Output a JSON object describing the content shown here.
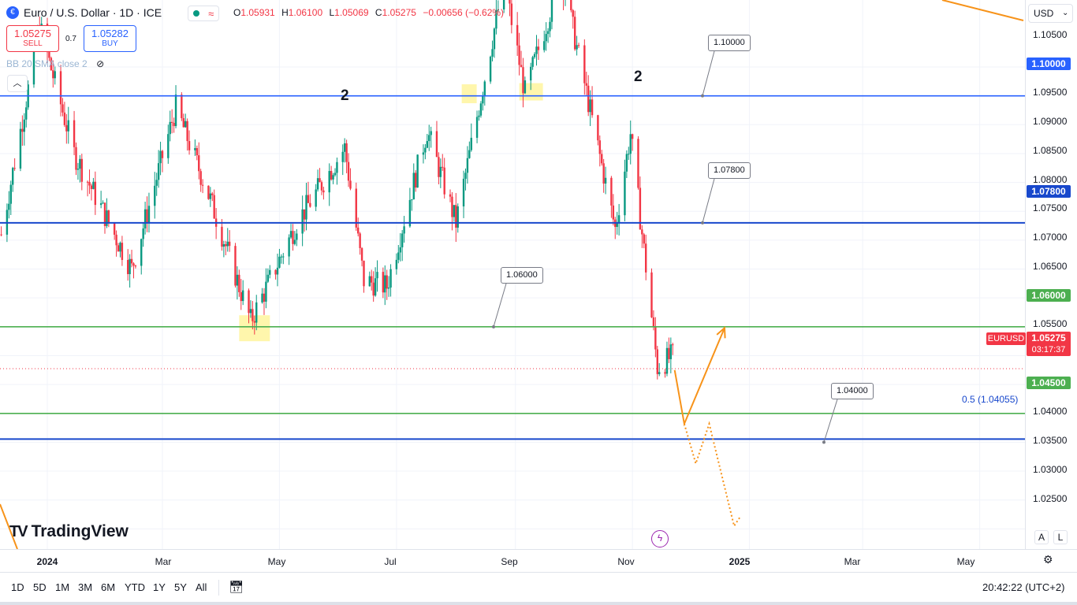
{
  "header": {
    "symbol_title": "Euro / U.S. Dollar · 1D · ICE",
    "symbol_icon": "euro-flag-icon",
    "status_wave": "≈",
    "ohlc": [
      {
        "key": "O",
        "value": "1.05931"
      },
      {
        "key": "H",
        "value": "1.06100"
      },
      {
        "key": "L",
        "value": "1.05069"
      },
      {
        "key": "C",
        "value": "1.05275"
      }
    ],
    "change": "−0.00656 (−0.62%)"
  },
  "trade": {
    "sell_price": "1.05275",
    "sell_label": "SELL",
    "spread": "0.7",
    "buy_price": "1.05282",
    "buy_label": "BUY"
  },
  "indicator": {
    "label": "BB 20 SMA close 2"
  },
  "currency": "USD",
  "colors": {
    "up": "#089981",
    "down": "#f23645",
    "level_blue": "#2962ff",
    "level_navy": "#1848cc",
    "level_green": "#4caf50",
    "forecast": "#f7931a",
    "highlight": "#fff59d"
  },
  "chart_data": {
    "type": "candlestick",
    "symbol": "EURUSD",
    "interval": "1D",
    "y_ticks": [
      "1.10500",
      "1.09500",
      "1.09000",
      "1.08500",
      "1.08000",
      "1.07500",
      "1.07000",
      "1.06500",
      "1.05500",
      "1.04000",
      "1.03500",
      "1.03000",
      "1.02500"
    ],
    "x_ticks": [
      "2024",
      "Mar",
      "May",
      "Jul",
      "Sep",
      "Nov",
      "2025",
      "Mar",
      "May"
    ],
    "ylim": [
      1.0215,
      1.1166
    ],
    "anchors": [
      [
        "2023-12-08",
        1.076
      ],
      [
        "2023-12-28",
        1.112
      ],
      [
        "2024-01-15",
        1.09
      ],
      [
        "2024-02-14",
        1.07
      ],
      [
        "2024-03-08",
        1.098
      ],
      [
        "2024-03-26",
        1.082
      ],
      [
        "2024-04-16",
        1.061
      ],
      [
        "2024-05-10",
        1.078
      ],
      [
        "2024-06-04",
        1.091
      ],
      [
        "2024-06-14",
        1.068
      ],
      [
        "2024-06-26",
        1.067
      ],
      [
        "2024-07-17",
        1.094
      ],
      [
        "2024-08-01",
        1.078
      ],
      [
        "2024-08-26",
        1.12
      ],
      [
        "2024-09-06",
        1.1005
      ],
      [
        "2024-09-25",
        1.121
      ],
      [
        "2024-10-23",
        1.077
      ],
      [
        "2024-10-31",
        1.0935
      ],
      [
        "2024-11-14",
        1.053
      ],
      [
        "2024-11-22",
        1.055
      ]
    ],
    "levels": [
      {
        "value": 1.1,
        "label": "1.10000",
        "color": "#2962ff"
      },
      {
        "value": 1.078,
        "label": "1.07800",
        "color": "#1848cc"
      },
      {
        "value": 1.06,
        "label": "1.06000",
        "color": "#4caf50"
      },
      {
        "value": 1.045,
        "label": "1.04500",
        "color": "#4caf50"
      },
      {
        "value": 1.04055,
        "label": "0.5 (1.04055)",
        "color": "#1848cc"
      }
    ],
    "level_callouts": [
      "1.10000",
      "1.07800",
      "1.06000",
      "1.04000"
    ],
    "wave_labels": [
      "2",
      "2"
    ],
    "last_price": {
      "symbol": "EURUSD",
      "price": "1.05275",
      "countdown": "03:17:37"
    },
    "forecast_solid": [
      [
        "2024-11-23",
        1.0525
      ],
      [
        "2024-11-28",
        1.0432
      ],
      [
        "2024-12-19",
        1.0598
      ]
    ],
    "forecast_dotted": [
      [
        "2024-11-28",
        1.0432
      ],
      [
        "2024-12-04",
        1.0363
      ],
      [
        "2024-12-11",
        1.0432
      ],
      [
        "2024-12-24",
        1.0255
      ],
      [
        "2024-12-27",
        1.027
      ]
    ]
  },
  "branding": {
    "logo_text": "TradingView",
    "logo_mark": "TV"
  },
  "toolbar": {
    "ranges": [
      "1D",
      "5D",
      "1M",
      "3M",
      "6M",
      "YTD",
      "1Y",
      "5Y",
      "All"
    ],
    "clock": "20:42:22 (UTC+2)"
  },
  "axis_controls": {
    "auto": "A",
    "log": "L"
  }
}
